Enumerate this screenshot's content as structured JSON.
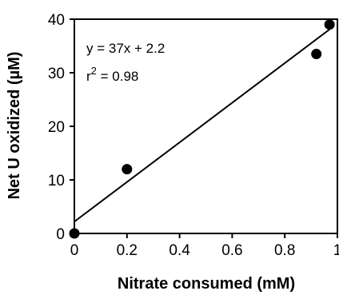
{
  "chart_data": {
    "type": "scatter",
    "title": "",
    "xlabel": "Nitrate consumed (mM)",
    "ylabel": "Net U oxidized (µM)",
    "xlim": [
      0,
      1
    ],
    "ylim": [
      0,
      40
    ],
    "x_ticks": [
      0,
      0.2,
      0.4,
      0.6,
      0.8,
      1
    ],
    "x_tick_labels": [
      "0",
      "0.2",
      "0.4",
      "0.6",
      "0.8",
      "1"
    ],
    "y_ticks": [
      0,
      10,
      20,
      30,
      40
    ],
    "y_tick_labels": [
      "0",
      "10",
      "20",
      "30",
      "40"
    ],
    "grid": false,
    "legend": "none",
    "series": [
      {
        "x": [
          0,
          0.2,
          0.92,
          0.97
        ],
        "y": [
          0,
          12,
          33.5,
          39
        ],
        "marker_color": "#000000"
      }
    ],
    "fit_line": {
      "slope": 37,
      "intercept": 2.2,
      "x_range": [
        0,
        0.97
      ],
      "color": "#000000"
    },
    "annotations": {
      "equation": "y = 37x + 2.2",
      "r2_base": "r",
      "r2_sup": "2",
      "r2_value": " = 0.98"
    }
  }
}
